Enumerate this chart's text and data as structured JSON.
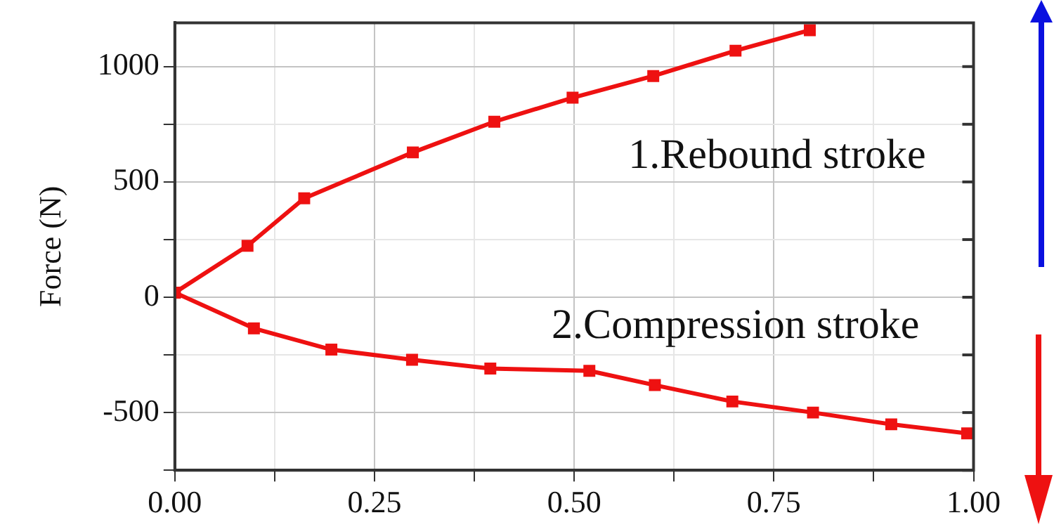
{
  "chart_data": {
    "type": "line",
    "ylabel": "Force (N)",
    "marker": "square",
    "line_style": "solid",
    "grid": true,
    "legend": false,
    "xlim": [
      0,
      1
    ],
    "xticks": [
      {
        "value": 0,
        "label": "0.00"
      },
      {
        "value": 0.125,
        "label": null
      },
      {
        "value": 0.25,
        "label": "0.25"
      },
      {
        "value": 0.375,
        "label": null
      },
      {
        "value": 0.5,
        "label": "0.50"
      },
      {
        "value": 0.625,
        "label": null
      },
      {
        "value": 0.75,
        "label": "0.75"
      },
      {
        "value": 0.875,
        "label": null
      },
      {
        "value": 1,
        "label": "1.00"
      }
    ],
    "ylim": [
      -750,
      1190
    ],
    "yticks": [
      {
        "value": -750,
        "label": null
      },
      -500,
      {
        "value": -250,
        "label": null
      },
      0,
      {
        "value": 250,
        "label": null
      },
      500,
      {
        "value": 750,
        "label": null
      },
      1000
    ],
    "series": [
      {
        "color": "#ee1111",
        "x": [
          0,
          0.091,
          0.162,
          0.298,
          0.4,
          0.498,
          0.599,
          0.702,
          0.795
        ],
        "values": [
          20,
          223,
          429,
          628,
          761,
          865,
          959,
          1069,
          1158
        ]
      },
      {
        "color": "#ee1111",
        "x": [
          0,
          0.099,
          0.196,
          0.297,
          0.395,
          0.519,
          0.601,
          0.698,
          0.799,
          0.897,
          0.992
        ],
        "values": [
          20,
          -135,
          -227,
          -271,
          -309,
          -319,
          -381,
          -452,
          -500,
          -551,
          -590
        ]
      }
    ],
    "annotations": [
      "1.Rebound stroke",
      "2.Compression stroke"
    ]
  }
}
